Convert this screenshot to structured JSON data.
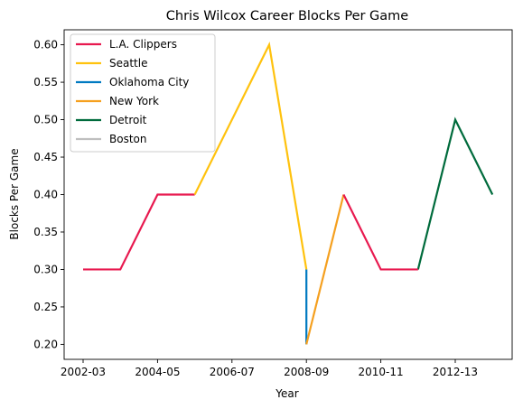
{
  "chart_data": {
    "type": "line",
    "title": "Chris Wilcox Career Blocks Per Game",
    "xlabel": "Year",
    "ylabel": "Blocks Per Game",
    "x_categories": [
      "2002-03",
      "2003-04",
      "2004-05",
      "2005-06",
      "2006-07",
      "2007-08",
      "2008-09",
      "2009-10",
      "2010-11",
      "2011-12",
      "2012-13",
      "2013-14"
    ],
    "x_tick_labels": [
      "2002-03",
      "2004-05",
      "2006-07",
      "2008-09",
      "2010-11",
      "2012-13"
    ],
    "ylim": [
      0.18,
      0.62
    ],
    "y_ticks": [
      0.2,
      0.25,
      0.3,
      0.35,
      0.4,
      0.45,
      0.5,
      0.55,
      0.6
    ],
    "legend_position": "top-left",
    "grid": false,
    "series": [
      {
        "name": "L.A. Clippers",
        "color": "#e8194f",
        "points": [
          [
            "2002-03",
            0.3
          ],
          [
            "2003-04",
            0.3
          ],
          [
            "2004-05",
            0.4
          ],
          [
            "2005-06",
            0.4
          ]
        ]
      },
      {
        "name": "Seattle",
        "color": "#ffc20e",
        "points": [
          [
            "2005-06",
            0.4
          ],
          [
            "2007-08",
            0.6
          ],
          [
            "2008-09",
            0.3
          ]
        ]
      },
      {
        "name": "Oklahoma City",
        "color": "#007ac1",
        "points": [
          [
            "2008-09",
            0.3
          ],
          [
            "2008-09",
            0.2
          ]
        ]
      },
      {
        "name": "New York",
        "color": "#f5a01f",
        "points": [
          [
            "2008-09",
            0.2
          ],
          [
            "2009-10",
            0.4
          ]
        ]
      },
      {
        "name": "Detroit",
        "color": "#006b3c",
        "points": [
          [
            "2011-12",
            0.3
          ],
          [
            "2012-13",
            0.5
          ],
          [
            "2013-14",
            0.4
          ]
        ]
      },
      {
        "name": "Boston",
        "color": "#bfbfbf",
        "points": []
      },
      {
        "name": "L.A. Clippers",
        "color": "#e8194f",
        "points": [
          [
            "2009-10",
            0.4
          ],
          [
            "2010-11",
            0.3
          ],
          [
            "2011-12",
            0.3
          ]
        ]
      }
    ]
  }
}
